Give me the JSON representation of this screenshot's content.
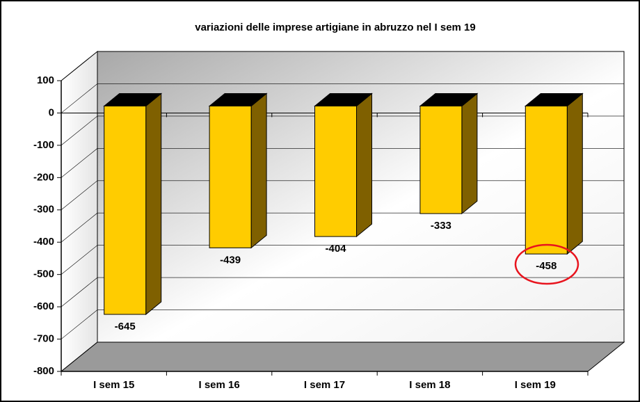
{
  "chart_data": {
    "type": "bar3d",
    "title": "variazioni delle imprese artigiane in abruzzo nel I sem 19",
    "categories": [
      "I sem 15",
      "I sem 16",
      "I sem 17",
      "I sem 18",
      "I sem 19"
    ],
    "values": [
      -645,
      -439,
      -404,
      -333,
      -458
    ],
    "color": "#ffcc00",
    "side_color": "#7f6000",
    "top_color": "#000000",
    "ylim": [
      -800,
      100
    ],
    "yticks": [
      -800,
      -700,
      -600,
      -500,
      -400,
      -300,
      -200,
      -100,
      0,
      100
    ],
    "grid": true
  }
}
